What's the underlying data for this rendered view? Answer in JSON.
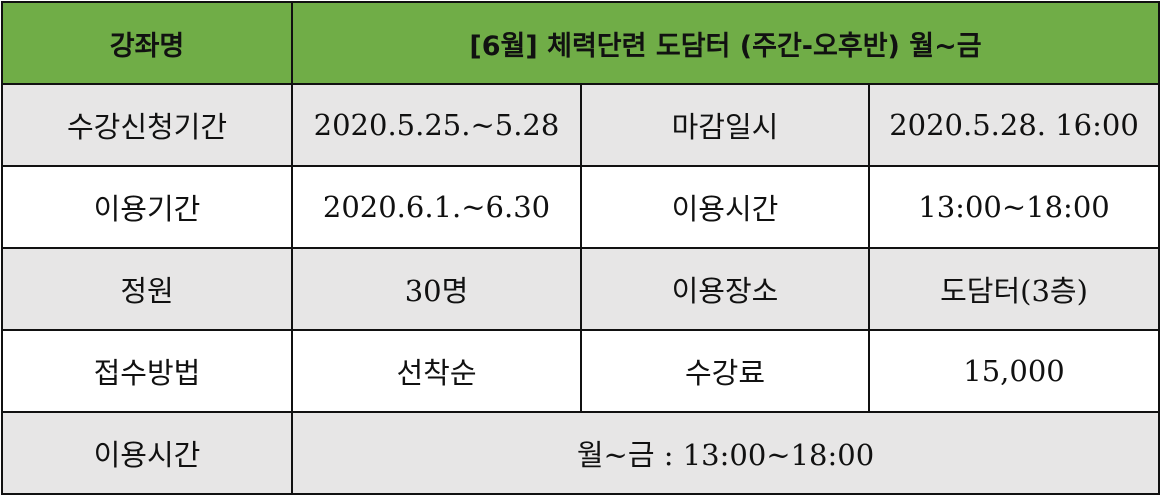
{
  "header": {
    "label": "강좌명",
    "value": "[6월] 체력단련 도담터 (주간-오후반) 월~금"
  },
  "rows": [
    [
      "수강신청기간",
      "2020.5.25.~5.28",
      "마감일시",
      "2020.5.28. 16:00"
    ],
    [
      "이용기간",
      "2020.6.1.~6.30",
      "이용시간",
      "13:00~18:00"
    ],
    [
      "정원",
      "30명",
      "이용장소",
      "도담터(3층)"
    ],
    [
      "접수방법",
      "선착순",
      "수강료",
      "15,000"
    ]
  ],
  "last": {
    "label": "이용시간",
    "value": "월~금 : 13:00~18:00"
  },
  "colors": {
    "header": "#70ad47",
    "shaded": "#e7e6e6"
  }
}
